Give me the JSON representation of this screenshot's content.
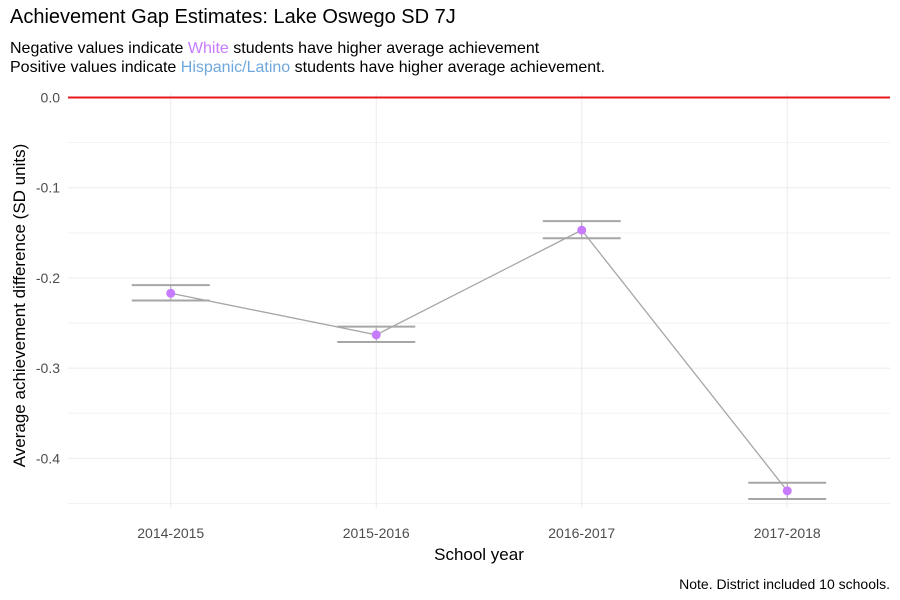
{
  "title": "Achievement Gap Estimates: Lake Oswego SD 7J",
  "subtitle": {
    "line1": {
      "before": "Negative values indicate ",
      "highlight": "White",
      "after": " students have higher average achievement"
    },
    "line2": {
      "before": "Positive values indicate ",
      "highlight": "Hispanic/Latino",
      "after": " students have higher average achievement."
    }
  },
  "caption": "Note. District included 10 schools.",
  "colors": {
    "white_group": "#C77CFF",
    "hispanic_group": "#6FA8DC",
    "reference_line": "#E41A1C",
    "series_line": "#A6A6A6",
    "point": "#C77CFF"
  },
  "chart_data": {
    "type": "line",
    "xlabel": "School year",
    "ylabel": "Average achievement difference (SD units)",
    "categories": [
      "2014-2015",
      "2015-2016",
      "2016-2017",
      "2017-2018"
    ],
    "values": [
      -0.217,
      -0.263,
      -0.147,
      -0.436
    ],
    "error_bars": {
      "lower": [
        -0.225,
        -0.271,
        -0.156,
        -0.445
      ],
      "upper": [
        -0.208,
        -0.254,
        -0.137,
        -0.427
      ]
    },
    "reference_line_y": 0.0,
    "ylim": [
      -0.455,
      0.005
    ],
    "yticks": [
      0.0,
      -0.1,
      -0.2,
      -0.3,
      -0.4
    ],
    "ytick_labels": [
      "0.0",
      "-0.1",
      "-0.2",
      "-0.3",
      "-0.4"
    ],
    "grid": true,
    "legend": "none"
  }
}
